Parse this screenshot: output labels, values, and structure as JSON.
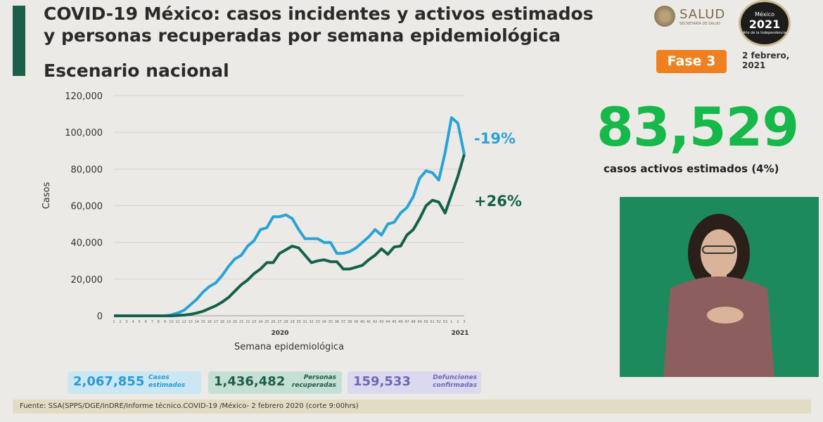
{
  "header": {
    "title": "COVID-19 México: casos incidentes y activos estimados y personas recuperadas por semana epidemiológica",
    "subtitle": "Escenario nacional",
    "logo_text": "SALUD",
    "logo_subtext": "SECRETARÍA DE SALUD",
    "seal_top": "México",
    "seal_year": "2021",
    "seal_bottom": "Año de la Independencia",
    "phase_label": "Fase 3",
    "date": "2 febrero, 2021"
  },
  "highlight": {
    "value": "83,529",
    "caption": "casos activos estimados (4%)"
  },
  "stats": [
    {
      "value": "2,067,855",
      "label": "Casos estimados",
      "color": "#2b9ad2"
    },
    {
      "value": "1,436,482",
      "label": "Personas recuperadas",
      "color": "#1b5e4a"
    },
    {
      "value": "159,533",
      "label": "Defunciones confirmadas",
      "color": "#6e68b8"
    }
  ],
  "footer": "Fuente: SSA(SPPS/DGE/InDRE/Informe técnico.COVID-19 /México- 2 febrero 2020 (corte 9:00hrs)",
  "colors": {
    "accent": "#1b5e4a",
    "blue_series": "#2aa3d6",
    "green_series": "#14614b",
    "big_number": "#16b84a",
    "phase": "#f0801f"
  },
  "chart_data": {
    "type": "line",
    "ylabel": "Casos",
    "xlabel": "Semana epidemiológica",
    "ylim": [
      0,
      120000
    ],
    "yticks": [
      "0",
      "20,000",
      "40,000",
      "60,000",
      "80,000",
      "100,000",
      "120,000"
    ],
    "year_labels": [
      "2020",
      "2021"
    ],
    "x": [
      "1",
      "2",
      "3",
      "4",
      "5",
      "6",
      "7",
      "8",
      "9",
      "10",
      "11",
      "12",
      "13",
      "14",
      "15",
      "16",
      "17",
      "18",
      "19",
      "20",
      "21",
      "22",
      "23",
      "24",
      "25",
      "26",
      "27",
      "28",
      "29",
      "30",
      "31",
      "32",
      "33",
      "34",
      "35",
      "36",
      "37",
      "38",
      "39",
      "40",
      "41",
      "42",
      "43",
      "44",
      "45",
      "46",
      "47",
      "48",
      "49",
      "50",
      "51",
      "52",
      "53",
      "1",
      "2",
      "3"
    ],
    "series": [
      {
        "name": "",
        "color": "#2aa3d6",
        "values": [
          0,
          0,
          0,
          0,
          0,
          0,
          0,
          0,
          0,
          500,
          1500,
          3000,
          6000,
          9000,
          13000,
          16000,
          18000,
          22000,
          27000,
          31000,
          33000,
          38000,
          41000,
          47000,
          48000,
          54000,
          54000,
          55000,
          53000,
          47000,
          42000,
          42000,
          42000,
          40000,
          40000,
          34000,
          34000,
          35000,
          37000,
          40000,
          43000,
          47000,
          44000,
          50000,
          51000,
          56000,
          59000,
          65000,
          75000,
          79000,
          78000,
          74000,
          89000,
          108000,
          105000,
          88000
        ]
      },
      {
        "name": "",
        "color": "#14614b",
        "values": [
          0,
          0,
          0,
          0,
          0,
          0,
          0,
          0,
          0,
          0,
          200,
          400,
          800,
          1500,
          2500,
          4000,
          5500,
          7500,
          10000,
          13500,
          17000,
          19500,
          23000,
          25500,
          29000,
          29000,
          34000,
          36000,
          38000,
          37000,
          33000,
          29000,
          30000,
          30500,
          29500,
          29500,
          25500,
          25500,
          26500,
          27500,
          30500,
          33000,
          36500,
          33500,
          37500,
          38000,
          44000,
          47000,
          53000,
          60000,
          63000,
          62000,
          56000,
          66000,
          76000,
          88000
        ]
      }
    ],
    "annotations": [
      {
        "text": "-19%",
        "color": "#2aa3d6"
      },
      {
        "text": "+26%",
        "color": "#14614b"
      }
    ]
  }
}
